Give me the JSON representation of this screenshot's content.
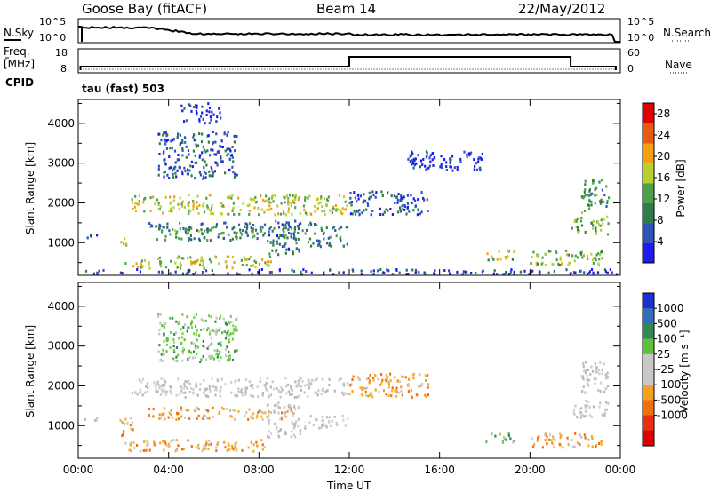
{
  "header": {
    "station": "Goose Bay (fitACF)",
    "beam": "Beam 14",
    "date": "22/May/2012"
  },
  "top_panels": {
    "nsky_label": "N.Sky",
    "nsearch_label": "N.Search",
    "nsky_ticks": [
      "10^5",
      "10^0"
    ],
    "freq_label": "Freq.",
    "freq_unit": "[MHz]",
    "freq_ticks": [
      "18",
      "8"
    ],
    "nave_label": "Nave",
    "nave_ticks": [
      "60",
      "0"
    ],
    "cpid_label": "CPID",
    "cpid_value": "tau (fast) 503"
  },
  "x_axis": {
    "label": "Time UT",
    "ticks": [
      "00:00",
      "04:00",
      "08:00",
      "12:00",
      "16:00",
      "20:00",
      "00:00"
    ]
  },
  "chart_data": [
    {
      "type": "heatmap",
      "panel": "power",
      "ylabel": "Slant Range [km]",
      "xlabel": "Time UT",
      "y_ticks": [
        1000,
        2000,
        3000,
        4000
      ],
      "ylim": [
        180,
        4600
      ],
      "xlim_hours": [
        0,
        24
      ],
      "colorbar": {
        "label": "Power [dB]",
        "ticks": [
          4,
          8,
          12,
          16,
          20,
          24,
          28
        ],
        "range": [
          0,
          30
        ],
        "colors": [
          "#1c1cf0",
          "#2f54b8",
          "#2e7d4a",
          "#4fa04a",
          "#b8d030",
          "#f2a010",
          "#e85a10",
          "#e00000"
        ]
      },
      "scatter_regions": [
        {
          "t": [
            0.2,
            1.0
          ],
          "r": [
            1100,
            1200
          ],
          "level": 0.15
        },
        {
          "t": [
            1.8,
            2.2
          ],
          "r": [
            850,
            1150
          ],
          "level": 0.5
        },
        {
          "t": [
            2.3,
            11.9
          ],
          "r": [
            1700,
            2200
          ],
          "level": 0.55
        },
        {
          "t": [
            3.0,
            11.9
          ],
          "r": [
            1300,
            1500
          ],
          "level": 0.3
        },
        {
          "t": [
            3.4,
            9.6
          ],
          "r": [
            1050,
            1350
          ],
          "level": 0.35
        },
        {
          "t": [
            2.0,
            8.5
          ],
          "r": [
            350,
            650
          ],
          "level": 0.55
        },
        {
          "t": [
            3.5,
            7.0
          ],
          "r": [
            2600,
            3800
          ],
          "level": 0.2
        },
        {
          "t": [
            4.5,
            6.3
          ],
          "r": [
            4000,
            4500
          ],
          "level": 0.1
        },
        {
          "t": [
            8.3,
            9.8
          ],
          "r": [
            700,
            1600
          ],
          "level": 0.25
        },
        {
          "t": [
            10.0,
            11.9
          ],
          "r": [
            900,
            1250
          ],
          "level": 0.3
        },
        {
          "t": [
            11.9,
            15.5
          ],
          "r": [
            1700,
            2300
          ],
          "level": 0.15
        },
        {
          "t": [
            14.5,
            18.0
          ],
          "r": [
            2800,
            3300
          ],
          "level": 0.1
        },
        {
          "t": [
            18.0,
            19.3
          ],
          "r": [
            550,
            800
          ],
          "level": 0.5
        },
        {
          "t": [
            20.0,
            23.3
          ],
          "r": [
            400,
            800
          ],
          "level": 0.5
        },
        {
          "t": [
            21.8,
            23.5
          ],
          "r": [
            1200,
            1650
          ],
          "level": 0.45
        },
        {
          "t": [
            22.2,
            23.5
          ],
          "r": [
            1750,
            2600
          ],
          "level": 0.35
        },
        {
          "t": [
            0.0,
            23.8
          ],
          "r": [
            200,
            330
          ],
          "level": 0.15
        }
      ]
    },
    {
      "type": "heatmap",
      "panel": "velocity",
      "ylabel": "Slant Range [km]",
      "xlabel": "Time UT",
      "y_ticks": [
        1000,
        2000,
        3000,
        4000
      ],
      "ylim": [
        180,
        4600
      ],
      "xlim_hours": [
        0,
        24
      ],
      "colorbar": {
        "label": "Velocity [m s⁻¹]",
        "ticks": [
          "1000",
          "500",
          "100",
          "25",
          "-25",
          "-100",
          "-500",
          "-1000"
        ],
        "colors": [
          "#1c2fd0",
          "#2f6fb8",
          "#2e8a50",
          "#5bc23a",
          "#c8c8c8",
          "#c8c8c8",
          "#f5a020",
          "#f07010",
          "#e83010",
          "#e00000"
        ]
      },
      "scatter_regions": [
        {
          "t": [
            0.2,
            1.0
          ],
          "r": [
            1100,
            1200
          ],
          "level": "gray"
        },
        {
          "t": [
            1.8,
            2.4
          ],
          "r": [
            700,
            1200
          ],
          "level": "orange"
        },
        {
          "t": [
            2.3,
            11.9
          ],
          "r": [
            1700,
            2200
          ],
          "level": "gray"
        },
        {
          "t": [
            3.0,
            9.6
          ],
          "r": [
            1150,
            1450
          ],
          "level": "orange"
        },
        {
          "t": [
            2.0,
            8.5
          ],
          "r": [
            350,
            650
          ],
          "level": "orange"
        },
        {
          "t": [
            3.5,
            7.0
          ],
          "r": [
            2600,
            3800
          ],
          "level": "green"
        },
        {
          "t": [
            8.3,
            9.8
          ],
          "r": [
            700,
            1600
          ],
          "level": "gray"
        },
        {
          "t": [
            10.0,
            11.9
          ],
          "r": [
            900,
            1250
          ],
          "level": "gray"
        },
        {
          "t": [
            11.9,
            15.5
          ],
          "r": [
            1700,
            2300
          ],
          "level": "orange"
        },
        {
          "t": [
            18.0,
            19.3
          ],
          "r": [
            550,
            800
          ],
          "level": "green"
        },
        {
          "t": [
            20.0,
            23.3
          ],
          "r": [
            450,
            800
          ],
          "level": "orange"
        },
        {
          "t": [
            21.8,
            23.5
          ],
          "r": [
            1200,
            1650
          ],
          "level": "gray"
        },
        {
          "t": [
            22.2,
            23.5
          ],
          "r": [
            1750,
            2600
          ],
          "level": "gray"
        }
      ]
    }
  ]
}
